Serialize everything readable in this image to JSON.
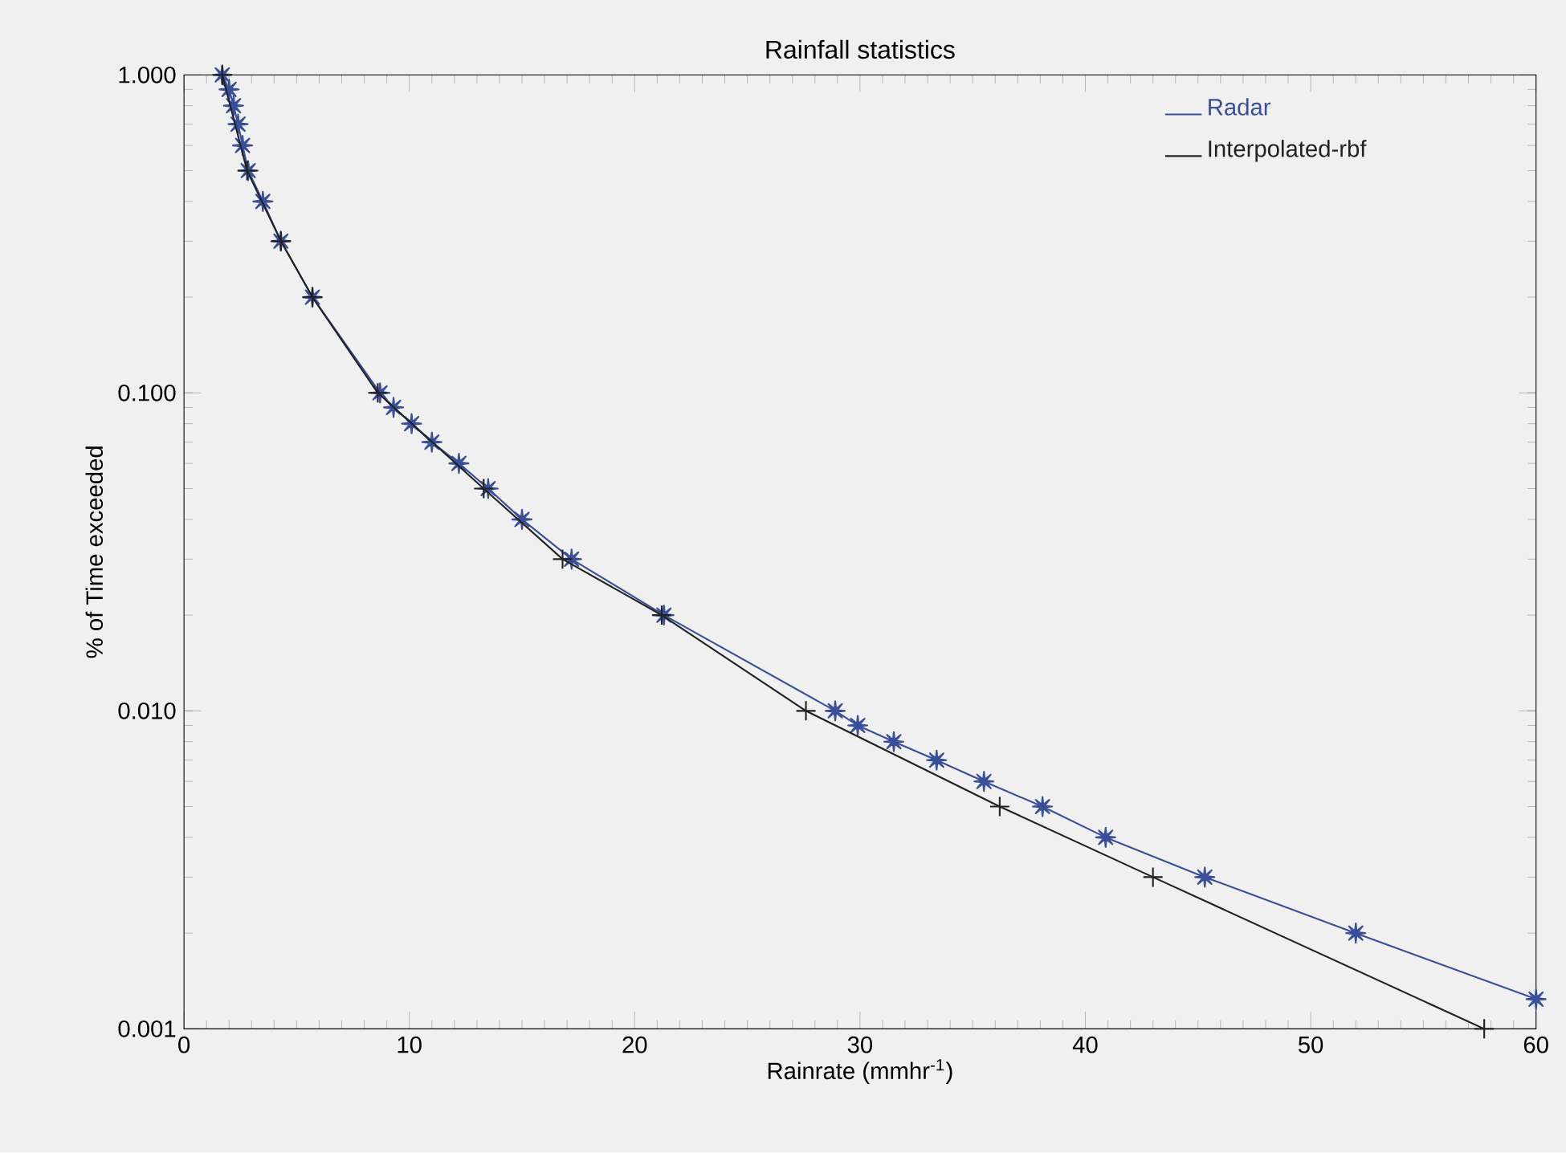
{
  "chart_data": {
    "type": "line",
    "title": "Rainfall statistics",
    "xlabel": "Rainrate (mmhr$^{-1}$)",
    "ylabel": "% of Time exceeded",
    "log": "y",
    "xlim": [
      0,
      60
    ],
    "ylim": [
      0.001,
      1
    ],
    "xticks": [
      0,
      10,
      20,
      30,
      40,
      50,
      60
    ],
    "yticks": [
      {
        "value": 0.001,
        "label": "0.001"
      },
      {
        "value": 0.01,
        "label": "0.010"
      },
      {
        "value": 0.1,
        "label": "0.100"
      },
      {
        "value": 1,
        "label": "1.000"
      }
    ],
    "legend": "top right",
    "grid": false,
    "series": [
      {
        "name": "Radar",
        "color": "#3a4f9a",
        "marker": "star",
        "x": [
          1.7,
          2.0,
          2.2,
          2.4,
          2.6,
          2.85,
          3.5,
          4.3,
          5.7,
          8.7,
          9.3,
          10.1,
          11.0,
          12.2,
          13.5,
          15.0,
          17.2,
          21.3,
          28.9,
          29.9,
          31.5,
          33.4,
          35.5,
          38.1,
          40.9,
          45.3,
          52.0,
          60
        ],
        "values": [
          1,
          0.9,
          0.8,
          0.7,
          0.6,
          0.5,
          0.4,
          0.3,
          0.2,
          0.1,
          0.09,
          0.08,
          0.07,
          0.06,
          0.05,
          0.04,
          0.03,
          0.02,
          0.01,
          0.009,
          0.008,
          0.007,
          0.006,
          0.005,
          0.004,
          0.003,
          0.002,
          0.00124
        ]
      },
      {
        "name": "Interpolated-rbf",
        "color": "#222222",
        "marker": "cross",
        "x": [
          1.7,
          2.8,
          4.3,
          5.7,
          8.6,
          13.3,
          16.8,
          21.2,
          27.6,
          36.2,
          43.0,
          57.7
        ],
        "values": [
          1,
          0.5,
          0.3,
          0.2,
          0.1,
          0.05,
          0.03,
          0.02,
          0.01,
          0.005,
          0.003,
          0.001
        ]
      }
    ]
  }
}
